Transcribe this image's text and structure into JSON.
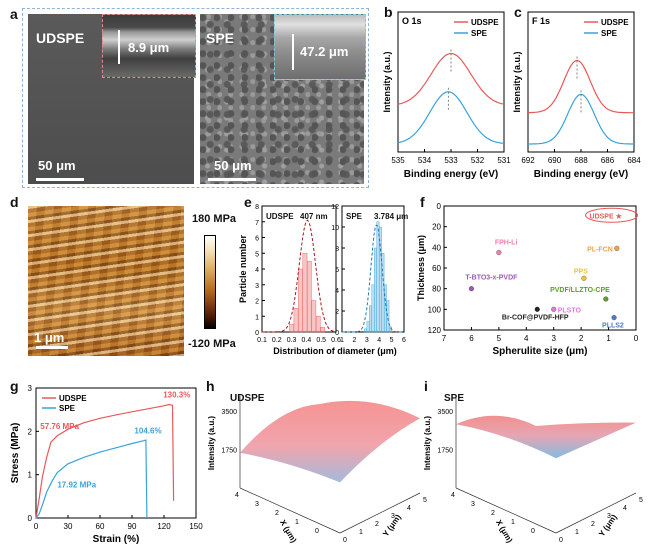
{
  "panels": {
    "a": {
      "letter": "a",
      "left_label": "UDSPE",
      "right_label": "SPE",
      "left_inset_text": "8.9 μm",
      "right_inset_text": "47.2 μm",
      "left_scale": "50 μm",
      "right_scale": "50 μm",
      "colors": {
        "udspe_box": "#e58a8a",
        "spe_box": "#7ec9d6",
        "outer_box": "#8fb3d9"
      }
    },
    "b": {
      "letter": "b",
      "title": "O 1s"
    },
    "c": {
      "letter": "c",
      "title": "F 1s"
    },
    "d": {
      "letter": "d",
      "colorbar_max": "180 MPa",
      "colorbar_min": "-120 MPa",
      "scale": "1 μm"
    },
    "e": {
      "letter": "e",
      "left_label": "UDSPE",
      "left_value": "407 nm",
      "right_label": "SPE",
      "right_value": "3.784 μm"
    },
    "f": {
      "letter": "f"
    },
    "g": {
      "letter": "g"
    },
    "h": {
      "letter": "h",
      "label": "UDSPE",
      "zlabel": "Intensity (a.u.)",
      "xlabel": "X (μm)",
      "ylabel": "Y (μm)"
    },
    "i": {
      "letter": "i",
      "label": "SPE",
      "zlabel": "Intensity (a.u.)",
      "xlabel": "X (μm)",
      "ylabel": "Y (μm)"
    }
  },
  "chart_data": [
    {
      "panel": "b",
      "type": "line",
      "title": "O 1s",
      "xlabel": "Binding energy (eV)",
      "ylabel": "Intensity (a.u.)",
      "xlim": [
        535,
        531
      ],
      "xticks": [
        "535",
        "534",
        "533",
        "532",
        "531"
      ],
      "legend": "top-right",
      "series": [
        {
          "name": "UDSPE",
          "color": "#e8595a",
          "peak": 533.0,
          "width": 0.75,
          "amplitude": 1.0,
          "baseline": 0.55
        },
        {
          "name": "SPE",
          "color": "#3aa3d9",
          "peak": 533.1,
          "width": 0.7,
          "amplitude": 1.0,
          "baseline": 0.0
        }
      ]
    },
    {
      "panel": "c",
      "type": "line",
      "title": "F 1s",
      "xlabel": "Binding energy (eV)",
      "ylabel": "Intensity (a.u.)",
      "xlim": [
        692,
        684
      ],
      "xticks": [
        "692",
        "690",
        "688",
        "686",
        "684"
      ],
      "legend": "top-right",
      "series": [
        {
          "name": "UDSPE",
          "color": "#e8595a",
          "peak": 688.3,
          "width": 1.0,
          "amplitude": 1.0,
          "baseline": 0.45
        },
        {
          "name": "SPE",
          "color": "#3aa3d9",
          "peak": 688.0,
          "width": 1.0,
          "amplitude": 0.95,
          "baseline": 0.0
        }
      ]
    },
    {
      "panel": "e-left",
      "type": "bar",
      "xlabel": "Distribution of diameter (μm)",
      "ylabel": "Particle number",
      "xticks": [
        "0.1",
        "0.2",
        "0.3",
        "0.4",
        "0.5",
        "0.6"
      ],
      "yticks": [
        "0",
        "1",
        "2",
        "3",
        "4",
        "5",
        "6",
        "7",
        "8"
      ],
      "xlim": [
        0.1,
        0.6
      ],
      "ylim": [
        0,
        8
      ],
      "x": [
        0.3,
        0.33,
        0.36,
        0.39,
        0.42,
        0.45,
        0.48,
        0.51
      ],
      "values": [
        0.5,
        1.5,
        4.0,
        5.0,
        4.5,
        2.0,
        1.0,
        0.3
      ],
      "fit": {
        "mean": 0.407,
        "sd": 0.055,
        "peak": 7.1
      },
      "color": "#e8595a"
    },
    {
      "panel": "e-right",
      "type": "bar",
      "xticks": [
        "1",
        "2",
        "3",
        "4",
        "5",
        "6"
      ],
      "yticks": [
        "0",
        "2",
        "4",
        "6",
        "8",
        "10",
        "12"
      ],
      "xlim": [
        1,
        6
      ],
      "ylim": [
        0,
        12
      ],
      "x": [
        2.9,
        3.1,
        3.3,
        3.5,
        3.7,
        3.9,
        4.1,
        4.3,
        4.5,
        4.7,
        4.9
      ],
      "values": [
        0.3,
        1.0,
        2.5,
        4.5,
        8.0,
        10.5,
        10.0,
        7.5,
        4.5,
        3.0,
        0.5
      ],
      "fit": {
        "mean": 3.784,
        "sd": 0.45,
        "peak": 10.2
      },
      "color": "#3aa3d9"
    },
    {
      "panel": "f",
      "type": "scatter",
      "xlabel": "Spherulite size (μm)",
      "ylabel": "Thickness (μm)",
      "xticks": [
        "7",
        "6",
        "5",
        "4",
        "3",
        "2",
        "1",
        "0"
      ],
      "yticks": [
        "0",
        "20",
        "40",
        "60",
        "80",
        "100",
        "120"
      ],
      "xlim": [
        7,
        0
      ],
      "ylim": [
        0,
        120
      ],
      "points": [
        {
          "label": "UDSPE ★",
          "x": 0.6,
          "y": 9,
          "color": "#e8595a",
          "star": true
        },
        {
          "label": "FPH-Li",
          "x": 5.0,
          "y": 45,
          "color": "#f07fb0"
        },
        {
          "label": "PL-FCN",
          "x": 0.7,
          "y": 41,
          "color": "#f0a050"
        },
        {
          "label": "PPS",
          "x": 1.9,
          "y": 70,
          "color": "#f0c040"
        },
        {
          "label": "T-BTO3-x-PVDF",
          "x": 6.0,
          "y": 80,
          "color": "#9b59b6"
        },
        {
          "label": "PVDF/LLZTO-CPE",
          "x": 1.1,
          "y": 90,
          "color": "#5aa02c"
        },
        {
          "label": "Br-COF@PVDF-HFP",
          "x": 3.6,
          "y": 100,
          "color": "#222222"
        },
        {
          "label": "PLSTO",
          "x": 3.0,
          "y": 100,
          "color": "#e07ae0"
        },
        {
          "label": "PLLS2",
          "x": 0.8,
          "y": 108,
          "color": "#4a7ac9"
        }
      ]
    },
    {
      "panel": "g",
      "type": "line",
      "xlabel": "Strain (%)",
      "ylabel": "Stress (MPa)",
      "xticks": [
        "0",
        "30",
        "60",
        "90",
        "120",
        "150"
      ],
      "yticks": [
        "0",
        "1",
        "2",
        "3"
      ],
      "xlim": [
        0,
        150
      ],
      "ylim": [
        0,
        3
      ],
      "legend": "top-left",
      "series": [
        {
          "name": "UDSPE",
          "color": "#e8595a",
          "x": [
            0,
            3,
            6,
            10,
            14,
            20,
            30,
            45,
            60,
            75,
            90,
            105,
            118,
            125,
            128,
            129
          ],
          "y": [
            0,
            0.45,
            0.95,
            1.4,
            1.75,
            1.9,
            2.05,
            2.2,
            2.3,
            2.38,
            2.45,
            2.52,
            2.58,
            2.62,
            2.6,
            0.4
          ]
        },
        {
          "name": "SPE",
          "color": "#3aa3d9",
          "x": [
            0,
            3,
            6,
            10,
            15,
            20,
            30,
            45,
            60,
            75,
            90,
            100,
            103,
            104
          ],
          "y": [
            0,
            0.1,
            0.3,
            0.6,
            0.85,
            1.05,
            1.25,
            1.4,
            1.52,
            1.62,
            1.72,
            1.78,
            1.8,
            0.0
          ]
        }
      ],
      "annotations": [
        {
          "text": "130.3%",
          "color": "#e8595a"
        },
        {
          "text": "57.76 MPa",
          "color": "#e8595a"
        },
        {
          "text": "104.6%",
          "color": "#3aa3d9"
        },
        {
          "text": "17.92 MPa",
          "color": "#3aa3d9"
        }
      ]
    },
    {
      "panel": "h",
      "type": "area",
      "zticks": [
        "3500",
        "1750"
      ],
      "xticks": [
        "0",
        "1",
        "2",
        "3",
        "4"
      ],
      "yticks": [
        "0",
        "1",
        "2",
        "3",
        "4",
        "5"
      ]
    },
    {
      "panel": "i",
      "type": "area",
      "zticks": [
        "3500",
        "1750"
      ],
      "xticks": [
        "0",
        "1",
        "2",
        "3",
        "4"
      ],
      "yticks": [
        "0",
        "1",
        "2",
        "3",
        "4",
        "5"
      ]
    }
  ]
}
